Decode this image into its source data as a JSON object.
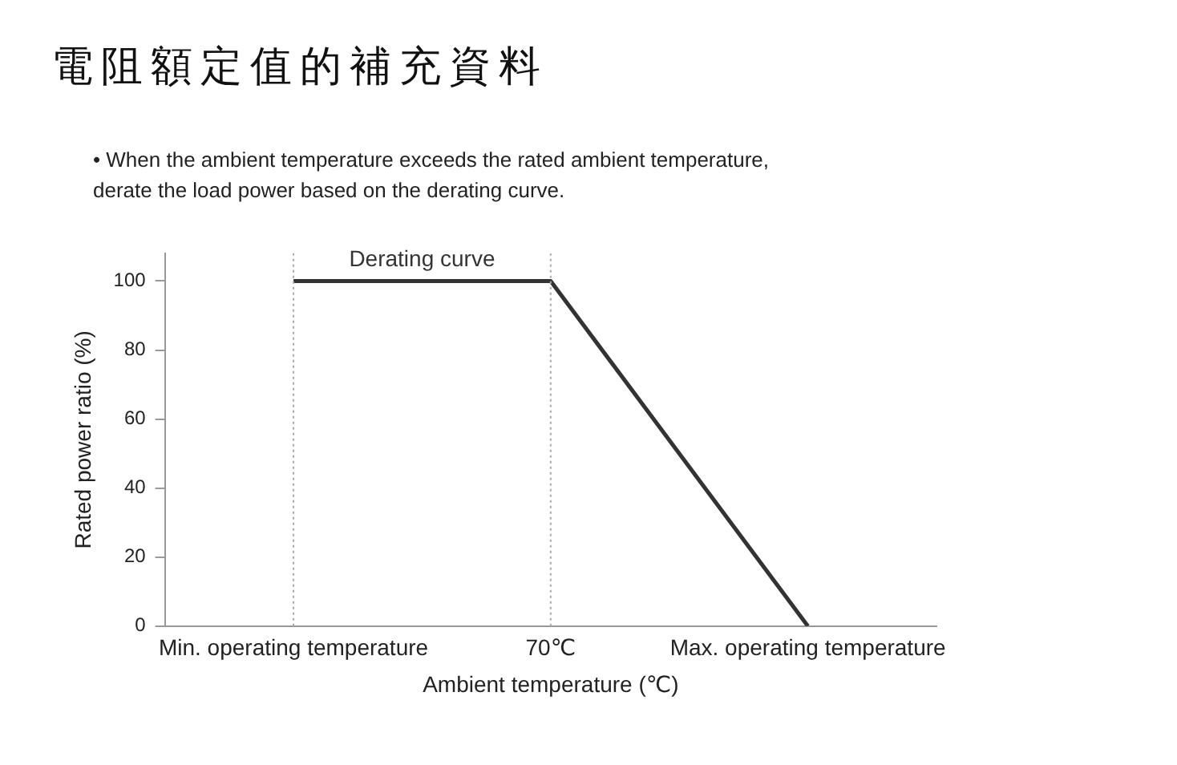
{
  "chart_data": {
    "type": "line",
    "title": "電阻額定值的補充資料",
    "subtitle": "• When the ambient temperature exceeds the rated ambient temperature,\nderate the load power based on the derating curve.",
    "xlabel": "Ambient temperature (℃)",
    "ylabel": "Rated power ratio (%)",
    "categories": [
      "Min. operating temperature",
      "70℃",
      "Max. operating temperature"
    ],
    "series": [
      {
        "name": "Derating curve",
        "color": "#333333",
        "values": [
          100,
          100,
          0
        ]
      }
    ],
    "ylim": [
      0,
      108
    ],
    "yticks": [
      0,
      20,
      40,
      60,
      80,
      100
    ],
    "ref_lines": [
      {
        "axis": "x",
        "value": "Min. operating temperature",
        "color": "#aaaaaa",
        "line_style": "dotted"
      },
      {
        "axis": "x",
        "value": "70℃",
        "color": "#aaaaaa",
        "line_style": "dotted"
      }
    ],
    "grid": false,
    "legend": false,
    "marker": "none"
  }
}
